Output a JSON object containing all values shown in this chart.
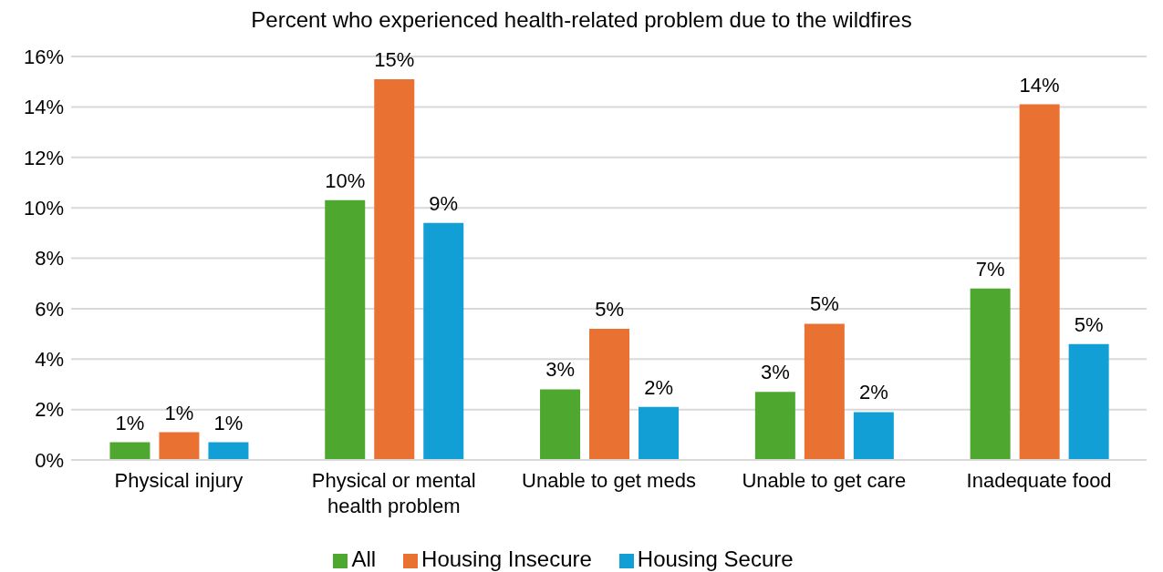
{
  "chart_data": {
    "type": "bar",
    "title": "Percent who experienced health-related problem due to the wildfires",
    "categories": [
      "Physical injury",
      "Physical or mental health problem",
      "Unable to get meds",
      "Unable to get care",
      "Inadequate food"
    ],
    "series": [
      {
        "name": "All",
        "color": "#4ea72e",
        "values": [
          0.7,
          10.3,
          2.8,
          2.7,
          6.8
        ],
        "value_labels": [
          "1%",
          "10%",
          "3%",
          "3%",
          "7%"
        ]
      },
      {
        "name": "Housing Insecure",
        "color": "#e97132",
        "values": [
          1.1,
          15.1,
          5.2,
          5.4,
          14.1
        ],
        "value_labels": [
          "1%",
          "15%",
          "5%",
          "5%",
          "14%"
        ]
      },
      {
        "name": "Housing Secure",
        "color": "#119fd6",
        "values": [
          0.7,
          9.4,
          2.1,
          1.9,
          4.6
        ],
        "value_labels": [
          "1%",
          "9%",
          "2%",
          "2%",
          "5%"
        ]
      }
    ],
    "ylim": [
      0,
      16
    ],
    "yticks": [
      {
        "value": 0,
        "label": "0%"
      },
      {
        "value": 2,
        "label": "2%"
      },
      {
        "value": 4,
        "label": "4%"
      },
      {
        "value": 6,
        "label": "6%"
      },
      {
        "value": 8,
        "label": "8%"
      },
      {
        "value": 10,
        "label": "10%"
      },
      {
        "value": 12,
        "label": "12%"
      },
      {
        "value": 14,
        "label": "14%"
      },
      {
        "value": 16,
        "label": "16%"
      }
    ],
    "grid": "y",
    "legend": "bottom"
  }
}
